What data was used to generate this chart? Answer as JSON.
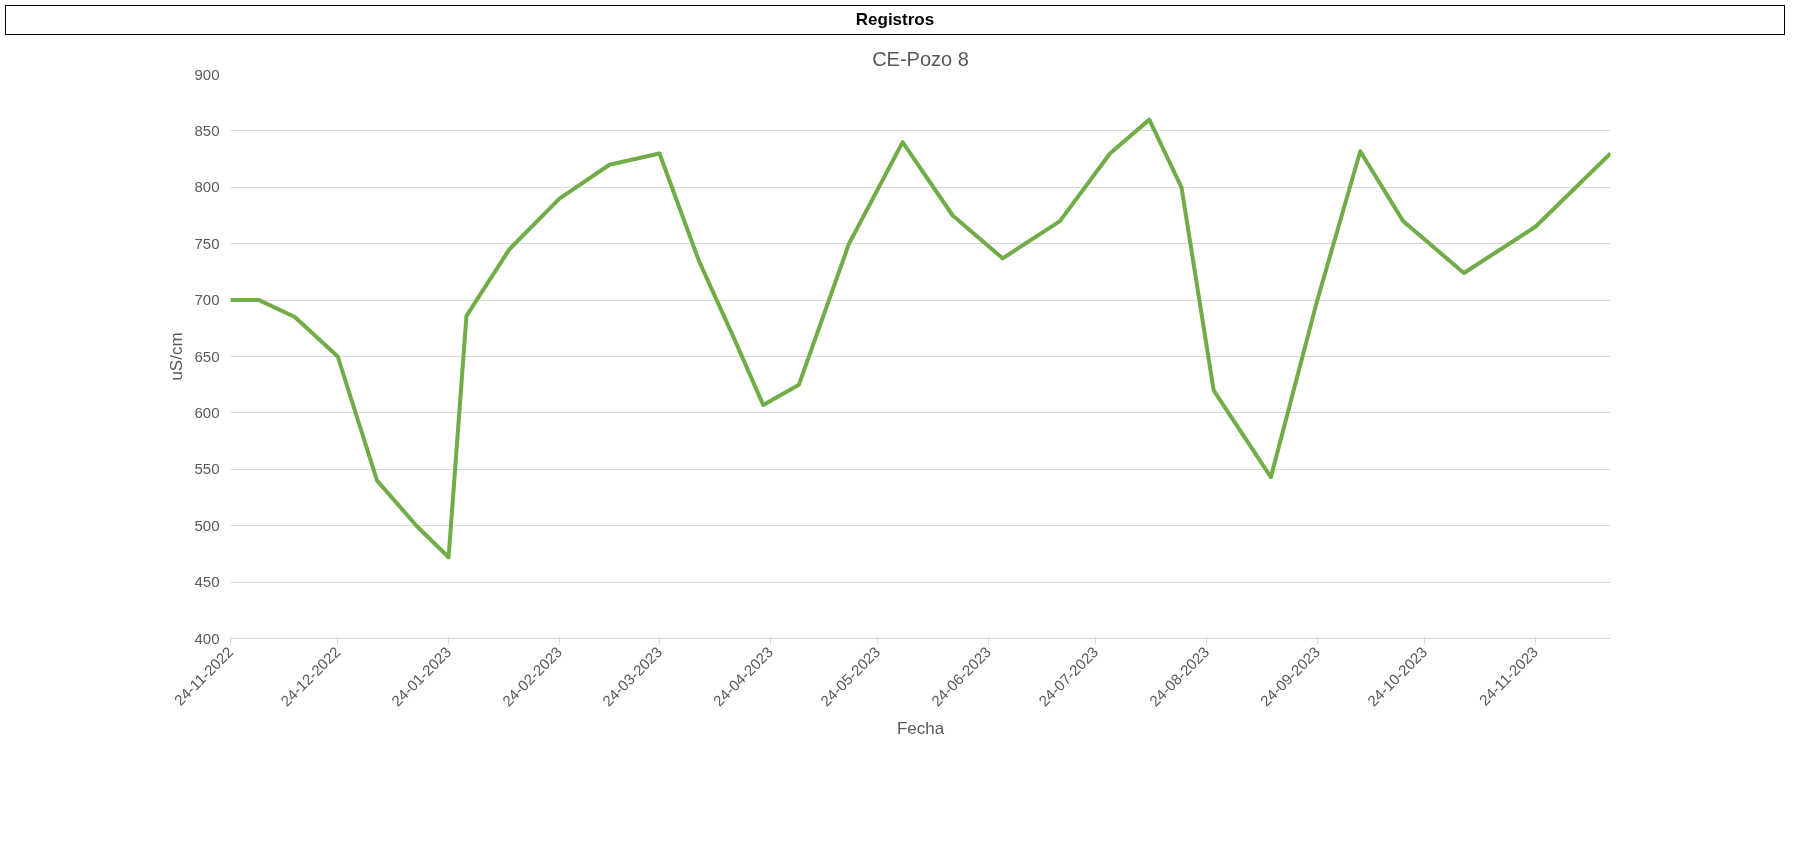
{
  "chart_data": {
    "type": "line",
    "title": "CE-Pozo 8",
    "xlabel": "Fecha",
    "ylabel": "uS/cm",
    "annotations": [
      "Registros"
    ],
    "x": [
      "2022-11-24",
      "2022-12-02",
      "2022-12-12",
      "2022-12-24",
      "2023-01-04",
      "2023-01-15",
      "2023-01-24",
      "2023-01-29",
      "2023-02-10",
      "2023-02-24",
      "2023-03-10",
      "2023-03-24",
      "2023-04-04",
      "2023-04-14",
      "2023-04-22",
      "2023-05-02",
      "2023-05-16",
      "2023-05-31",
      "2023-06-14",
      "2023-06-28",
      "2023-07-14",
      "2023-07-28",
      "2023-08-08",
      "2023-08-17",
      "2023-08-26",
      "2023-09-11",
      "2023-09-24",
      "2023-10-06",
      "2023-10-18",
      "2023-11-04",
      "2023-11-24",
      "2023-12-15"
    ],
    "series": [
      {
        "color": "#70ad47",
        "values": [
          700,
          700,
          685,
          650,
          540,
          500,
          472,
          686,
          745,
          790,
          820,
          830,
          735,
          665,
          607,
          625,
          750,
          840,
          775,
          737,
          770,
          830,
          860,
          800,
          620,
          543,
          700,
          832,
          770,
          724,
          765,
          830
        ]
      }
    ],
    "xlim": [
      "2022-11-24",
      "2023-12-15"
    ],
    "xticks": [
      {
        "value": "2022-11-24",
        "label": "24-11-2022"
      },
      {
        "value": "2022-12-24",
        "label": "24-12-2022"
      },
      {
        "value": "2023-01-24",
        "label": "24-01-2023"
      },
      {
        "value": "2023-02-24",
        "label": "24-02-2023"
      },
      {
        "value": "2023-03-24",
        "label": "24-03-2023"
      },
      {
        "value": "2023-04-24",
        "label": "24-04-2023"
      },
      {
        "value": "2023-05-24",
        "label": "24-05-2023"
      },
      {
        "value": "2023-06-24",
        "label": "24-06-2023"
      },
      {
        "value": "2023-07-24",
        "label": "24-07-2023"
      },
      {
        "value": "2023-08-24",
        "label": "24-08-2023"
      },
      {
        "value": "2023-09-24",
        "label": "24-09-2023"
      },
      {
        "value": "2023-10-24",
        "label": "24-10-2023"
      },
      {
        "value": "2023-11-24",
        "label": "24-11-2023"
      }
    ],
    "ylim": [
      400,
      900
    ],
    "yticks": [
      400,
      450,
      500,
      550,
      600,
      650,
      700,
      750,
      800,
      850,
      900
    ],
    "grid": "y",
    "marker": "none",
    "line_style": "solid"
  }
}
